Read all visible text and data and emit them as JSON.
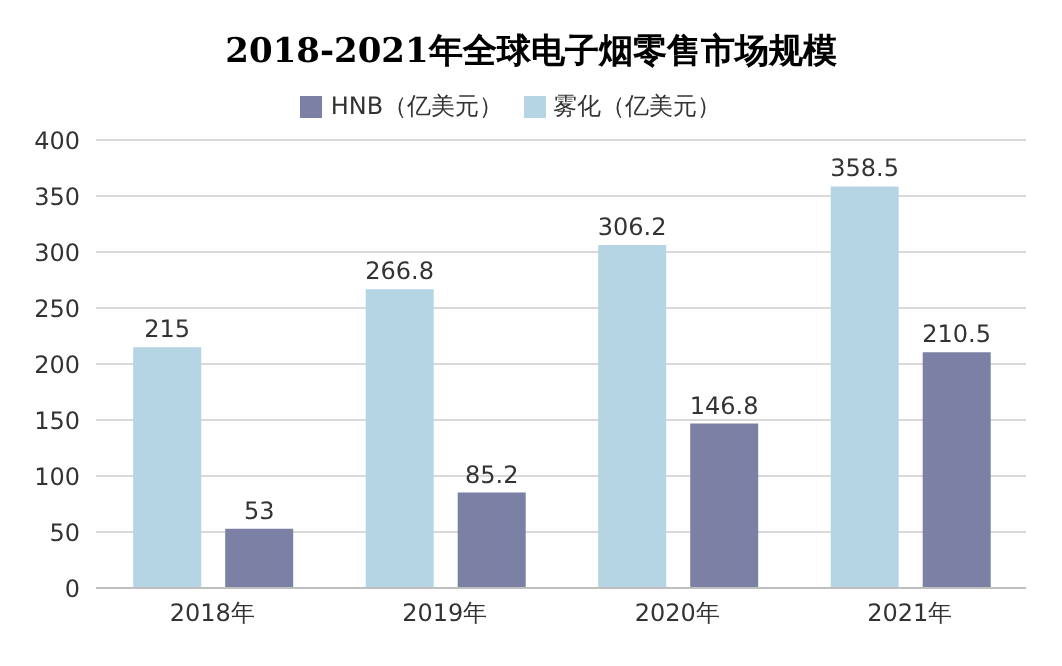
{
  "chart_data": {
    "type": "bar",
    "title": "2018-2021年全球电子烟零售市场规模",
    "categories": [
      "2018年",
      "2019年",
      "2020年",
      "2021年"
    ],
    "series": [
      {
        "name": "雾化（亿美元）",
        "color": "#b5d4e4",
        "values": [
          215,
          266.8,
          306.2,
          358.5
        ]
      },
      {
        "name": "HNB（亿美元）",
        "color": "#7b80a4",
        "values": [
          53,
          85.2,
          146.8,
          210.5
        ]
      }
    ],
    "ylim": [
      0,
      400
    ],
    "yticks": [
      0,
      50,
      100,
      150,
      200,
      250,
      300,
      350,
      400
    ],
    "grid": "y",
    "legend": "top",
    "data_labels": true
  }
}
